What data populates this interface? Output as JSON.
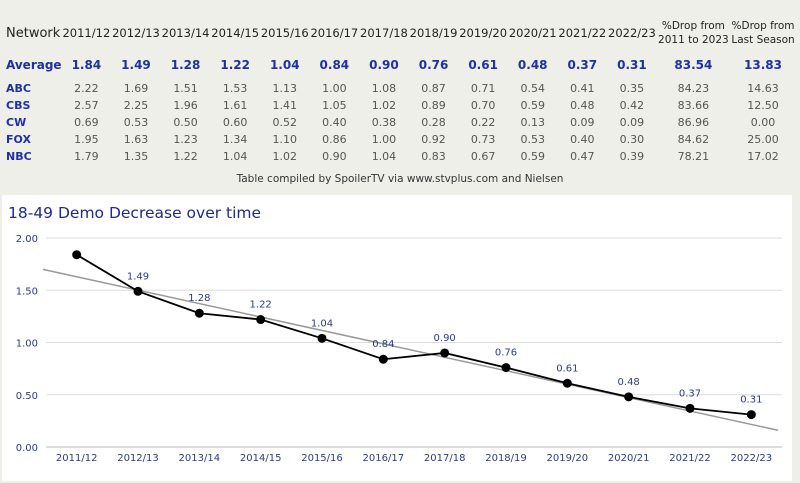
{
  "table": {
    "headers": [
      "Network",
      "2011/12",
      "2012/13",
      "2013/14",
      "2014/15",
      "2015/16",
      "2016/17",
      "2017/18",
      "2018/19",
      "2019/20",
      "2020/21",
      "2021/22",
      "2022/23",
      "%Drop from 2011 to 2023",
      "%Drop from Last Season"
    ],
    "header_pct1_lines": [
      "%Drop from",
      "2011 to 2023"
    ],
    "header_pct2_lines": [
      "%Drop from",
      "Last Season"
    ],
    "rows": [
      {
        "name": "Average",
        "values": [
          "1.84",
          "1.49",
          "1.28",
          "1.22",
          "1.04",
          "0.84",
          "0.90",
          "0.76",
          "0.61",
          "0.48",
          "0.37",
          "0.31",
          "83.54",
          "13.83"
        ]
      },
      {
        "name": "ABC",
        "values": [
          "2.22",
          "1.69",
          "1.51",
          "1.53",
          "1.13",
          "1.00",
          "1.08",
          "0.87",
          "0.71",
          "0.54",
          "0.41",
          "0.35",
          "84.23",
          "14.63"
        ]
      },
      {
        "name": "CBS",
        "values": [
          "2.57",
          "2.25",
          "1.96",
          "1.61",
          "1.41",
          "1.05",
          "1.02",
          "0.89",
          "0.70",
          "0.59",
          "0.48",
          "0.42",
          "83.66",
          "12.50"
        ]
      },
      {
        "name": "CW",
        "values": [
          "0.69",
          "0.53",
          "0.50",
          "0.60",
          "0.52",
          "0.40",
          "0.38",
          "0.28",
          "0.22",
          "0.13",
          "0.09",
          "0.09",
          "86.96",
          "0.00"
        ]
      },
      {
        "name": "FOX",
        "values": [
          "1.95",
          "1.63",
          "1.23",
          "1.34",
          "1.10",
          "0.86",
          "1.00",
          "0.92",
          "0.73",
          "0.53",
          "0.40",
          "0.30",
          "84.62",
          "25.00"
        ]
      },
      {
        "name": "NBC",
        "values": [
          "1.79",
          "1.35",
          "1.22",
          "1.04",
          "1.02",
          "0.90",
          "1.04",
          "0.83",
          "0.67",
          "0.59",
          "0.47",
          "0.39",
          "78.21",
          "17.02"
        ]
      }
    ],
    "caption": "Table compiled by SpoilerTV via www.stvplus.com and Nielsen"
  },
  "chart_data": {
    "type": "line",
    "title": "18-49 Demo Decrease over time",
    "categories": [
      "2011/12",
      "2012/13",
      "2013/14",
      "2014/15",
      "2015/16",
      "2016/17",
      "2017/18",
      "2018/19",
      "2019/20",
      "2020/21",
      "2021/22",
      "2022/23"
    ],
    "values": [
      1.84,
      1.49,
      1.28,
      1.22,
      1.04,
      0.84,
      0.9,
      0.76,
      0.61,
      0.48,
      0.37,
      0.31
    ],
    "data_labels": [
      "",
      "1.49",
      "1.28",
      "1.22",
      "1.04",
      "0.84",
      "0.90",
      "0.76",
      "0.61",
      "0.48",
      "0.37",
      "0.31"
    ],
    "trendline": {
      "start": 1.7,
      "end": 0.16
    },
    "ylim": [
      0,
      2.0
    ],
    "yticks": [
      "0.00",
      "0.50",
      "1.00",
      "1.50",
      "2.00"
    ],
    "grid": true,
    "colors": {
      "line": "#000000",
      "trend": "#999999",
      "label": "#2b3a8f",
      "axis_text": "#2b3a8f",
      "title": "#1f2a8a"
    }
  }
}
